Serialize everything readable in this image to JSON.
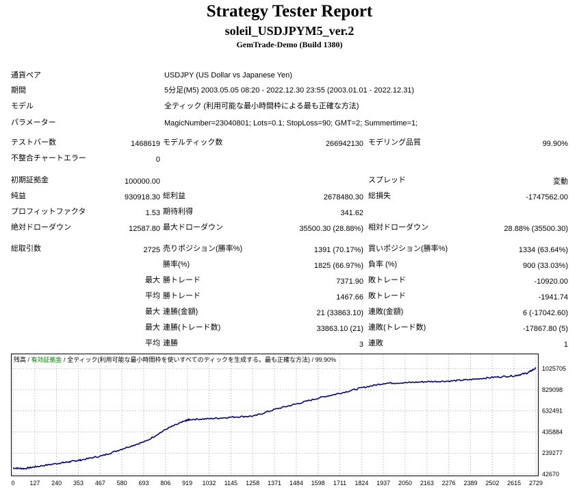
{
  "report": {
    "title": "Strategy Tester Report",
    "ea_name": "soleil_USDJPYM5_ver.2",
    "server_build": "GemTrade-Demo (Build 1380)"
  },
  "info": {
    "symbol_label": "通貨ペア",
    "symbol_value": "USDJPY (US Dollar vs Japanese Yen)",
    "period_label": "期間",
    "period_value": "5分足(M5) 2003.05.05 08:20 - 2022.12.30 23:55 (2003.01.01 - 2022.12.31)",
    "model_label": "モデル",
    "model_value": "全ティック (利用可能な最小時間枠による最も正確な方法)",
    "params_label": "パラメーター",
    "params_value": "MagicNumber=23040801; Lots=0.1; StopLoss=90; GMT=2; Summertime=1;"
  },
  "bars": {
    "bars_label": "テストバー数",
    "bars_value": "1468619",
    "ticks_label": "モデルティック数",
    "ticks_value": "266942130",
    "quality_label": "モデリング品質",
    "quality_value": "99.90%",
    "errors_label": "不整合チャートエラー",
    "errors_value": "0"
  },
  "summary": {
    "deposit_label": "初期証拠金",
    "deposit_value": "100000.00",
    "spread_label": "スプレッド",
    "spread_value": "変動",
    "net_label": "純益",
    "net_value": "930918.30",
    "gross_profit_label": "総利益",
    "gross_profit_value": "2678480.30",
    "gross_loss_label": "総損失",
    "gross_loss_value": "-1747562.00",
    "pf_label": "プロフィットファクタ",
    "pf_value": "1.53",
    "expected_label": "期待利得",
    "expected_value": "341.62",
    "abs_dd_label": "絶対ドローダウン",
    "abs_dd_value": "12587.80",
    "max_dd_label": "最大ドローダウン",
    "max_dd_value": "35500.30 (28.88%)",
    "rel_dd_label": "相対ドローダウン",
    "rel_dd_value": "28.88% (35500.30)"
  },
  "trades": {
    "total_label": "総取引数",
    "total_value": "2725",
    "short_label": "売りポジション(勝率%)",
    "short_value": "1391 (70.17%)",
    "long_label": "買いポジション(勝率%)",
    "long_value": "1334 (63.64%)",
    "win_rate_label": "勝率(%)",
    "win_rate_value": "1825 (66.97%)",
    "loss_rate_label": "負率 (%)",
    "loss_rate_value": "900 (33.03%)",
    "largest_label": "最大",
    "largest_win_label": "勝トレード",
    "largest_win_value": "7371.90",
    "largest_loss_label": "敗トレード",
    "largest_loss_value": "-10920.00",
    "average_label": "平均",
    "avg_win_label": "勝トレード",
    "avg_win_value": "1467.66",
    "avg_loss_label": "敗トレード",
    "avg_loss_value": "-1941.74",
    "max1_label": "最大",
    "max_cons_wins_label": "連勝(金額)",
    "max_cons_wins_value": "21 (33863.10)",
    "max_cons_losses_label": "連敗(金額)",
    "max_cons_losses_value": "6 (-17042.60)",
    "max2_label": "最大",
    "max_cons_profit_label": "連勝(トレード数)",
    "max_cons_profit_value": "33863.10 (21)",
    "max_cons_loss_label": "連敗(トレード数)",
    "max_cons_loss_value": "-17867.80 (5)",
    "avg2_label": "平均",
    "avg_cons_wins_label": "連勝",
    "avg_cons_wins_value": "3",
    "avg_cons_losses_label": "連敗",
    "avg_cons_losses_value": "1"
  },
  "colors": {
    "balance": "#00008b",
    "equity": "#008000",
    "grid": "#c8c8c8"
  },
  "chart_data": {
    "type": "line",
    "legend": {
      "balance": "残高",
      "sep1": " / ",
      "equity": "有効証拠金",
      "sep2": " / ",
      "model": "全ティック(利用可能な最小時間枠を使いすべてのティックを生成する。最も正確な方法)",
      "sep3": " / ",
      "quality": "99.90%"
    },
    "x_ticks": [
      "0",
      "127",
      "240",
      "353",
      "467",
      "580",
      "693",
      "806",
      "919",
      "1032",
      "1145",
      "1258",
      "1371",
      "1484",
      "1598",
      "1711",
      "1824",
      "1937",
      "2050",
      "2163",
      "2276",
      "2389",
      "2502",
      "2615",
      "2729"
    ],
    "y_ticks": [
      "1025705",
      "829098",
      "632491",
      "435884",
      "239277",
      "42670"
    ],
    "ylim": [
      42670,
      1080000
    ],
    "xlim": [
      0,
      2725
    ],
    "series": [
      {
        "name": "残高",
        "x": [
          0,
          60,
          127,
          240,
          300,
          353,
          467,
          580,
          693,
          806,
          900,
          919,
          1032,
          1145,
          1258,
          1371,
          1484,
          1598,
          1711,
          1824,
          1937,
          2050,
          2163,
          2276,
          2389,
          2502,
          2615,
          2680,
          2725
        ],
        "y": [
          100000,
          95000,
          115000,
          145000,
          160000,
          175000,
          215000,
          285000,
          350000,
          470000,
          540000,
          552000,
          560000,
          575000,
          585000,
          650000,
          700000,
          755000,
          800000,
          850000,
          890000,
          895000,
          905000,
          910000,
          925000,
          945000,
          960000,
          985000,
          1030918
        ]
      }
    ]
  }
}
